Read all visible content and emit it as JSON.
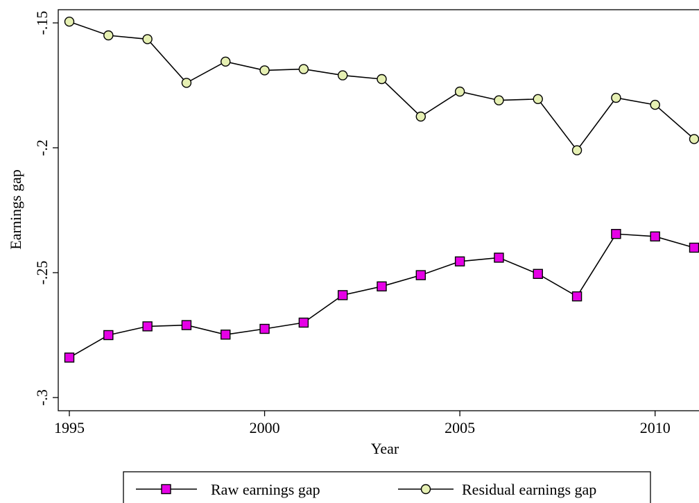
{
  "chart_data": {
    "type": "line",
    "title": "",
    "xlabel": "Year",
    "ylabel": "Earnings gap",
    "x": [
      1995,
      1996,
      1997,
      1998,
      1999,
      2000,
      2001,
      2002,
      2003,
      2004,
      2005,
      2006,
      2007,
      2008,
      2009,
      2010,
      2011
    ],
    "xlim": [
      1995,
      2011
    ],
    "ylim": [
      -0.3,
      -0.15
    ],
    "xticks": [
      1995,
      2000,
      2005,
      2010
    ],
    "xtick_labels": [
      "1995",
      "2000",
      "2005",
      "2010"
    ],
    "yticks": [
      -0.3,
      -0.25,
      -0.2,
      -0.15
    ],
    "ytick_labels": [
      "-.3",
      "-.25",
      "-.2",
      "-.15"
    ],
    "grid": false,
    "legend_position": "bottom",
    "series": [
      {
        "name": "Raw earnings gap",
        "marker": "square",
        "color": "#e600e6",
        "values": [
          -0.284,
          -0.275,
          -0.2715,
          -0.271,
          -0.2748,
          -0.2725,
          -0.27,
          -0.259,
          -0.2555,
          -0.251,
          -0.2455,
          -0.244,
          -0.2505,
          -0.2595,
          -0.2345,
          -0.2355,
          -0.24
        ]
      },
      {
        "name": "Residual earnings gap",
        "marker": "circle",
        "color": "#e6f0b3",
        "values": [
          -0.1495,
          -0.155,
          -0.1565,
          -0.174,
          -0.1655,
          -0.169,
          -0.1685,
          -0.171,
          -0.1725,
          -0.1875,
          -0.1775,
          -0.181,
          -0.1805,
          -0.201,
          -0.18,
          -0.1828,
          -0.1965
        ]
      }
    ]
  }
}
